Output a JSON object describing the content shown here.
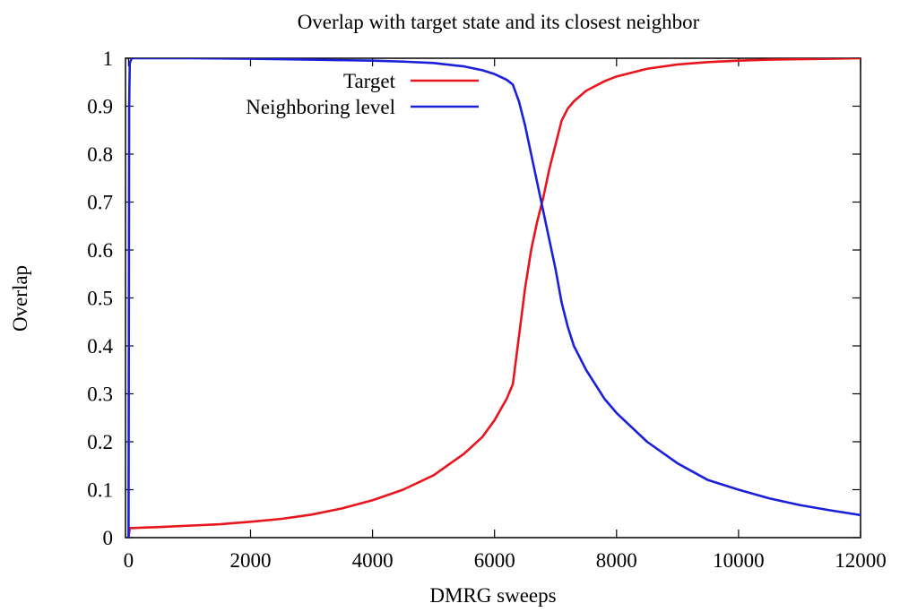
{
  "chart_data": {
    "type": "line",
    "title": "Overlap with target state and its closest neighbor",
    "xlabel": "DMRG sweeps",
    "ylabel": "Overlap",
    "xlim": [
      -50,
      12000
    ],
    "ylim": [
      0,
      1
    ],
    "xticks": [
      0,
      2000,
      4000,
      6000,
      8000,
      10000,
      12000
    ],
    "xtick_labels": [
      "0",
      "2000",
      "4000",
      "6000",
      "8000",
      "10000",
      "12000"
    ],
    "yticks": [
      0,
      0.1,
      0.2,
      0.3,
      0.4,
      0.5,
      0.6,
      0.7,
      0.8,
      0.9,
      1
    ],
    "ytick_labels": [
      "0",
      "0.1",
      "0.2",
      "0.3",
      "0.4",
      "0.5",
      "0.6",
      "0.7",
      "0.8",
      "0.9",
      "1"
    ],
    "grid": false,
    "legend_position": "top-center",
    "series": [
      {
        "name": "Target",
        "color": "#e8141e",
        "x": [
          0,
          20,
          50,
          500,
          1000,
          1500,
          2000,
          2500,
          3000,
          3500,
          4000,
          4500,
          5000,
          5500,
          5800,
          6000,
          6200,
          6300,
          6400,
          6500,
          6600,
          6700,
          6800,
          6900,
          7000,
          7100,
          7200,
          7300,
          7500,
          7800,
          8000,
          8500,
          9000,
          9500,
          10000,
          10500,
          11000,
          11500,
          12000
        ],
        "y": [
          0.0,
          0.02,
          0.02,
          0.022,
          0.025,
          0.028,
          0.033,
          0.039,
          0.048,
          0.061,
          0.078,
          0.1,
          0.13,
          0.175,
          0.21,
          0.245,
          0.29,
          0.32,
          0.42,
          0.52,
          0.6,
          0.66,
          0.71,
          0.77,
          0.82,
          0.87,
          0.895,
          0.91,
          0.932,
          0.952,
          0.962,
          0.978,
          0.987,
          0.992,
          0.995,
          0.997,
          0.998,
          0.999,
          1.0
        ]
      },
      {
        "name": "Neighboring level",
        "color": "#1a20d8",
        "x": [
          0,
          10,
          20,
          50,
          500,
          1000,
          2000,
          3000,
          4000,
          4500,
          5000,
          5500,
          5800,
          6000,
          6200,
          6300,
          6400,
          6500,
          6600,
          6700,
          6800,
          6900,
          7000,
          7100,
          7200,
          7300,
          7500,
          7800,
          8000,
          8500,
          9000,
          9500,
          10000,
          10500,
          11000,
          11500,
          12000
        ],
        "y": [
          0.0,
          0.9,
          0.99,
          1.0,
          1.0,
          1.0,
          0.999,
          0.997,
          0.995,
          0.993,
          0.99,
          0.983,
          0.975,
          0.967,
          0.955,
          0.945,
          0.91,
          0.86,
          0.8,
          0.74,
          0.68,
          0.62,
          0.56,
          0.49,
          0.44,
          0.4,
          0.35,
          0.29,
          0.26,
          0.2,
          0.155,
          0.12,
          0.1,
          0.082,
          0.068,
          0.057,
          0.047
        ]
      }
    ]
  }
}
